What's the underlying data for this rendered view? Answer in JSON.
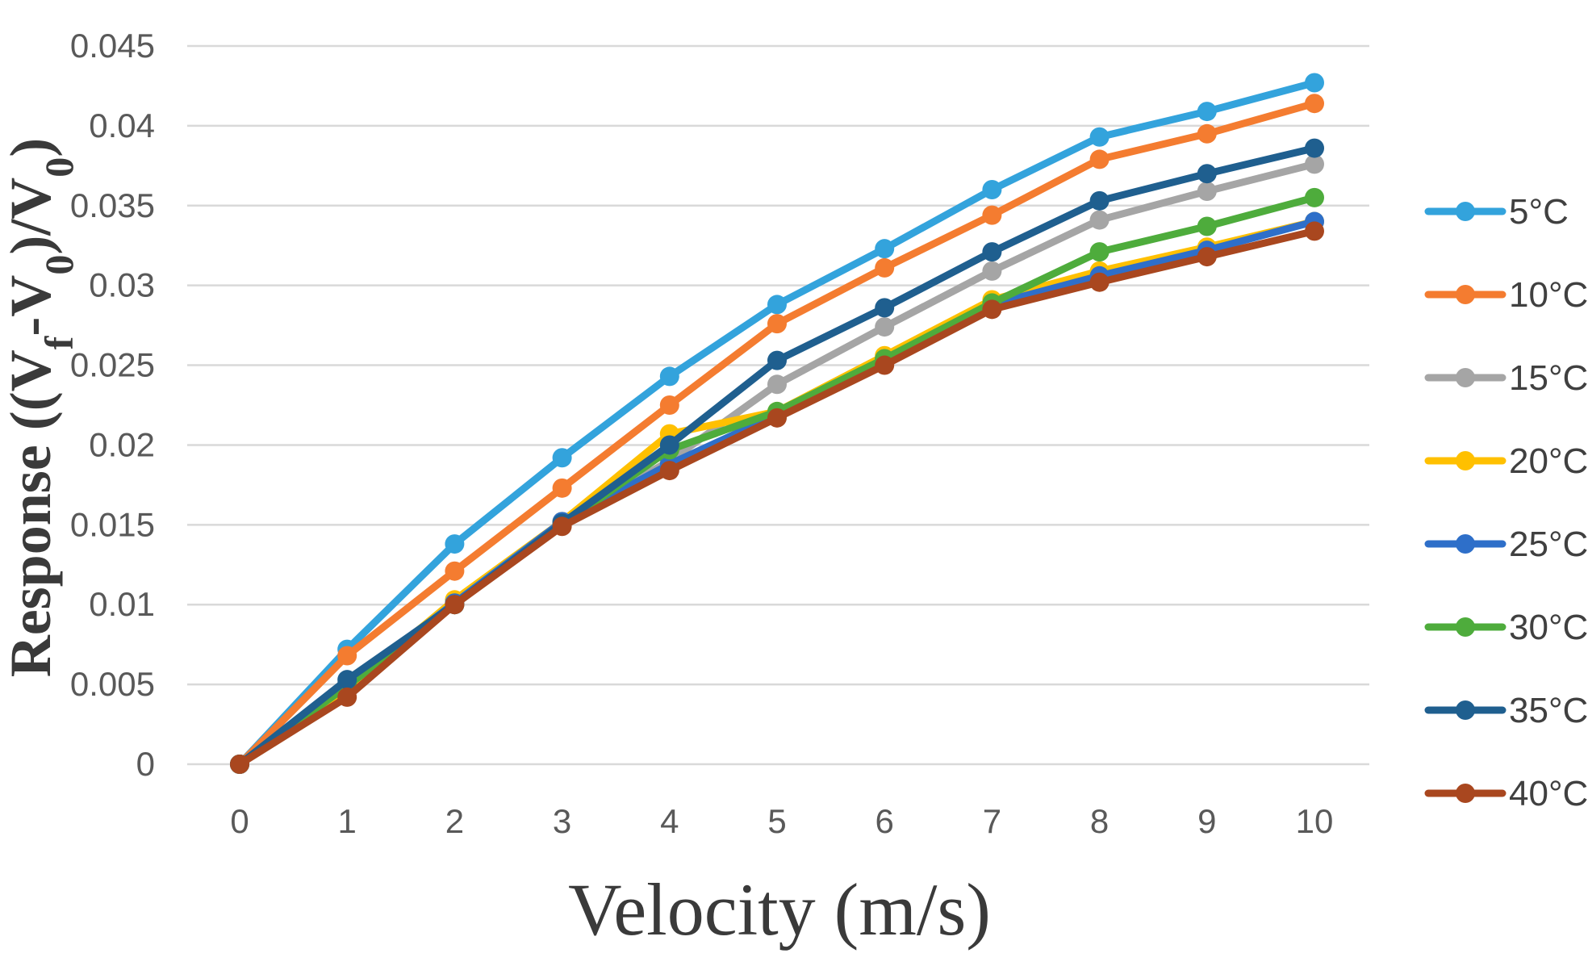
{
  "chart_data": {
    "type": "line",
    "title": "",
    "xlabel": "Velocity (m/s)",
    "ylabel": {
      "prefix": "Response ((V",
      "sub1": "f",
      "mid": "-V",
      "sub2": "0",
      "mid2": ")/V",
      "sub3": "0",
      "suffix": ")"
    },
    "x": [
      0,
      1,
      2,
      3,
      4,
      5,
      6,
      7,
      8,
      9,
      10
    ],
    "x_tick_labels": [
      "0",
      "1",
      "2",
      "3",
      "4",
      "5",
      "6",
      "7",
      "8",
      "9",
      "10"
    ],
    "ylim": [
      0,
      0.045
    ],
    "y_ticks": [
      0,
      0.005,
      0.01,
      0.015,
      0.02,
      0.025,
      0.03,
      0.035,
      0.04,
      0.045
    ],
    "y_tick_labels": [
      "0",
      "0.005",
      "0.01",
      "0.015",
      "0.02",
      "0.025",
      "0.03",
      "0.035",
      "0.04",
      "0.045"
    ],
    "grid": "horizontal",
    "legend_position": "right",
    "series": [
      {
        "name": "5°C",
        "color": "#33A3DC",
        "values": [
          0,
          0.0072,
          0.0138,
          0.0192,
          0.0243,
          0.0288,
          0.0323,
          0.036,
          0.0393,
          0.0409,
          0.0427
        ]
      },
      {
        "name": "10°C",
        "color": "#F47C30",
        "values": [
          0,
          0.0068,
          0.0121,
          0.0173,
          0.0225,
          0.0276,
          0.0311,
          0.0344,
          0.0379,
          0.0395,
          0.0414
        ]
      },
      {
        "name": "15°C",
        "color": "#A5A5A5",
        "values": [
          0,
          0.0051,
          0.0101,
          0.0152,
          0.019,
          0.0238,
          0.0274,
          0.0309,
          0.0341,
          0.0359,
          0.0376
        ]
      },
      {
        "name": "20°C",
        "color": "#FFC000",
        "values": [
          0,
          0.0047,
          0.0103,
          0.0152,
          0.0207,
          0.0221,
          0.0256,
          0.0291,
          0.0309,
          0.0324,
          0.034
        ]
      },
      {
        "name": "25°C",
        "color": "#2E6FC9",
        "values": [
          0,
          0.005,
          0.0101,
          0.0152,
          0.0188,
          0.0219,
          0.0254,
          0.0288,
          0.0306,
          0.0322,
          0.034
        ]
      },
      {
        "name": "30°C",
        "color": "#4EAC3C",
        "values": [
          0,
          0.0049,
          0.01,
          0.015,
          0.0197,
          0.0221,
          0.0254,
          0.0289,
          0.0321,
          0.0337,
          0.0355
        ]
      },
      {
        "name": "35°C",
        "color": "#1F5F8F",
        "values": [
          0,
          0.0053,
          0.01,
          0.0151,
          0.02,
          0.0253,
          0.0286,
          0.0321,
          0.0353,
          0.037,
          0.0386
        ]
      },
      {
        "name": "40°C",
        "color": "#A9471F",
        "values": [
          0,
          0.0042,
          0.01,
          0.0149,
          0.0184,
          0.0217,
          0.025,
          0.0285,
          0.0302,
          0.0318,
          0.0334
        ]
      }
    ]
  }
}
